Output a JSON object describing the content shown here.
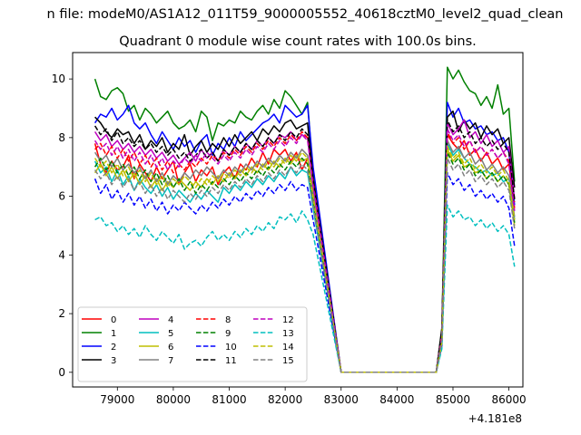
{
  "figure": {
    "suptitle": "n file: modeM0/AS1A12_011T59_9000005552_40618cztM0_level2_quad_clean",
    "title": "Quadrant 0 module wise count rates with 100.0s bins.",
    "offset_label": "+4.181e8"
  },
  "chart_data": {
    "type": "line",
    "title": "Quadrant 0 module wise count rates with 100.0s bins.",
    "xlabel": "",
    "ylabel": "",
    "x_offset": 418100000,
    "xlim": [
      78200,
      86250
    ],
    "ylim": [
      -0.5,
      10.9
    ],
    "xticks": [
      79000,
      80000,
      81000,
      82000,
      83000,
      84000,
      85000,
      86000
    ],
    "yticks": [
      0,
      2,
      4,
      6,
      8,
      10
    ],
    "grid": false,
    "legend": {
      "placement": "lower-left",
      "columns": 4
    },
    "x_start": 78600,
    "x_step": 100,
    "gap_start": 83000,
    "gap_end": 84700,
    "series": [
      {
        "name": "0",
        "color": "#ff0000",
        "dash": "solid",
        "before": [
          7.8,
          7.1,
          6.8,
          7.2,
          6.9,
          7.0,
          7.4,
          6.6,
          7.1,
          6.8,
          6.5,
          7.0,
          6.6,
          6.9,
          7.2,
          6.4,
          6.8,
          7.1,
          6.5,
          6.9,
          6.7,
          7.0,
          6.4,
          6.8,
          7.0,
          6.6,
          7.1,
          6.9,
          7.3,
          7.0,
          7.5,
          7.1,
          7.6,
          7.4,
          7.6,
          7.2,
          7.5,
          6.9,
          7.3,
          6.2
        ],
        "after": [
          1.0,
          8.1,
          7.8,
          7.6,
          7.9,
          7.4,
          7.6,
          7.2,
          7.5,
          7.1,
          7.3,
          6.9,
          7.1,
          5.6
        ]
      },
      {
        "name": "1",
        "color": "#008000",
        "dash": "solid",
        "before": [
          10.0,
          9.4,
          9.3,
          9.6,
          9.7,
          9.5,
          8.9,
          9.1,
          8.6,
          9.0,
          8.8,
          8.5,
          8.7,
          8.9,
          8.5,
          8.3,
          8.4,
          8.6,
          8.2,
          8.9,
          8.7,
          7.9,
          8.5,
          8.4,
          8.6,
          8.5,
          8.9,
          8.7,
          8.6,
          8.9,
          9.1,
          8.8,
          9.3,
          9.0,
          9.6,
          9.4,
          9.1,
          8.8,
          9.2,
          6.8
        ],
        "after": [
          1.4,
          10.4,
          10.0,
          10.3,
          9.9,
          9.6,
          9.5,
          9.1,
          9.4,
          9.0,
          9.8,
          8.8,
          9.0,
          6.5
        ]
      },
      {
        "name": "2",
        "color": "#0000ff",
        "dash": "solid",
        "before": [
          8.5,
          8.8,
          8.7,
          9.0,
          8.6,
          8.8,
          9.1,
          8.5,
          8.3,
          8.5,
          8.1,
          7.8,
          8.2,
          7.9,
          7.6,
          8.0,
          7.7,
          7.9,
          7.5,
          7.9,
          8.1,
          7.4,
          7.8,
          7.6,
          8.0,
          7.7,
          8.2,
          7.9,
          8.1,
          8.3,
          8.5,
          8.6,
          8.8,
          8.5,
          9.1,
          8.9,
          8.7,
          8.8,
          9.1,
          7.0
        ],
        "after": [
          1.2,
          9.2,
          8.7,
          9.0,
          8.5,
          8.6,
          8.3,
          8.4,
          8.1,
          8.2,
          7.9,
          8.0,
          7.5,
          5.7
        ]
      },
      {
        "name": "3",
        "color": "#000000",
        "dash": "solid",
        "before": [
          8.7,
          8.5,
          8.2,
          8.0,
          8.3,
          8.1,
          8.2,
          7.8,
          8.1,
          7.6,
          7.9,
          7.7,
          8.0,
          7.5,
          7.8,
          7.6,
          8.1,
          7.4,
          7.7,
          7.9,
          7.5,
          7.8,
          7.6,
          8.0,
          7.7,
          8.1,
          7.8,
          8.0,
          8.2,
          7.9,
          8.3,
          8.1,
          8.4,
          8.2,
          8.5,
          8.6,
          8.3,
          8.4,
          8.5,
          6.6
        ],
        "after": [
          1.5,
          8.7,
          8.9,
          8.2,
          8.6,
          8.3,
          8.5,
          8.0,
          8.4,
          8.1,
          8.3,
          7.8,
          8.0,
          6.3
        ]
      },
      {
        "name": "4",
        "color": "#bf00bf",
        "dash": "solid",
        "before": [
          8.2,
          7.9,
          8.1,
          7.7,
          7.9,
          7.6,
          7.8,
          7.5,
          7.7,
          7.4,
          7.6,
          7.3,
          7.5,
          7.2,
          7.4,
          7.1,
          7.3,
          7.5,
          7.2,
          7.6,
          7.3,
          7.5,
          7.2,
          7.6,
          7.4,
          7.7,
          7.5,
          7.8,
          7.6,
          7.9,
          7.7,
          8.0,
          7.8,
          8.1,
          8.0,
          8.2,
          7.9,
          8.1,
          8.0,
          6.4
        ],
        "after": [
          1.1,
          8.5,
          8.1,
          8.3,
          8.6,
          8.0,
          8.2,
          7.8,
          8.1,
          7.7,
          7.9,
          7.5,
          7.7,
          5.9
        ]
      },
      {
        "name": "5",
        "color": "#00bfbf",
        "dash": "solid",
        "before": [
          7.2,
          6.8,
          7.0,
          6.5,
          6.9,
          6.4,
          6.7,
          6.2,
          6.6,
          6.3,
          6.1,
          6.4,
          6.0,
          6.3,
          5.9,
          6.2,
          6.0,
          5.8,
          6.1,
          5.9,
          6.2,
          6.0,
          5.8,
          6.3,
          6.1,
          6.4,
          6.2,
          6.5,
          6.3,
          6.6,
          6.4,
          6.7,
          6.5,
          6.8,
          6.6,
          7.0,
          6.7,
          6.9,
          6.8,
          5.6
        ],
        "after": [
          1.3,
          7.8,
          7.4,
          7.6,
          7.3,
          7.1,
          7.0,
          6.8,
          6.9,
          6.7,
          6.8,
          6.5,
          6.6,
          5.2
        ]
      },
      {
        "name": "6",
        "color": "#bfbf00",
        "dash": "solid",
        "before": [
          6.8,
          7.1,
          6.7,
          7.0,
          6.6,
          6.9,
          6.5,
          6.8,
          6.4,
          6.7,
          6.3,
          6.6,
          6.2,
          6.5,
          6.3,
          6.6,
          6.4,
          6.2,
          6.5,
          6.3,
          6.6,
          6.4,
          6.7,
          6.5,
          6.8,
          6.6,
          6.9,
          6.7,
          7.0,
          6.8,
          7.1,
          6.9,
          7.2,
          7.0,
          7.3,
          7.1,
          7.4,
          7.2,
          7.3,
          5.9
        ],
        "after": [
          1.0,
          7.6,
          7.2,
          7.4,
          7.0,
          7.1,
          6.8,
          6.9,
          6.6,
          6.8,
          6.5,
          6.7,
          6.4,
          5.0
        ]
      },
      {
        "name": "7",
        "color": "#808080",
        "dash": "solid",
        "before": [
          7.5,
          7.2,
          7.4,
          7.0,
          7.3,
          6.9,
          7.1,
          6.8,
          7.0,
          6.6,
          6.9,
          6.5,
          6.8,
          6.4,
          6.7,
          6.5,
          6.8,
          6.6,
          6.9,
          6.7,
          7.0,
          6.8,
          6.6,
          6.9,
          6.7,
          7.0,
          6.8,
          7.1,
          6.9,
          7.2,
          7.0,
          7.3,
          7.1,
          7.4,
          7.2,
          7.5,
          7.3,
          7.6,
          7.4,
          6.1
        ],
        "after": [
          1.2,
          7.9,
          7.5,
          7.7,
          7.3,
          7.5,
          7.1,
          7.3,
          6.9,
          7.1,
          6.8,
          7.0,
          6.7,
          5.3
        ]
      },
      {
        "name": "8",
        "color": "#ff0000",
        "dash": "dashed",
        "before": [
          7.6,
          7.8,
          7.4,
          7.7,
          7.3,
          7.6,
          7.2,
          7.5,
          7.1,
          7.4,
          7.0,
          7.3,
          6.9,
          7.2,
          6.8,
          7.1,
          6.9,
          7.2,
          7.0,
          7.3,
          7.1,
          7.4,
          7.2,
          7.5,
          7.3,
          7.6,
          7.4,
          7.7,
          7.5,
          7.8,
          7.6,
          7.9,
          7.7,
          8.0,
          7.8,
          8.1,
          7.9,
          8.2,
          8.0,
          6.5
        ],
        "after": [
          1.3,
          8.2,
          7.8,
          8.0,
          7.6,
          7.9,
          7.5,
          7.7,
          7.4,
          7.6,
          7.3,
          7.5,
          7.2,
          5.8
        ]
      },
      {
        "name": "9",
        "color": "#008000",
        "dash": "dashed",
        "before": [
          7.0,
          7.3,
          6.9,
          7.2,
          6.8,
          7.1,
          6.7,
          7.0,
          6.6,
          6.9,
          6.5,
          6.8,
          6.4,
          6.7,
          6.3,
          6.6,
          6.2,
          6.5,
          6.1,
          6.4,
          6.2,
          6.5,
          6.3,
          6.6,
          6.4,
          6.7,
          6.5,
          6.8,
          6.6,
          6.9,
          6.7,
          7.0,
          6.8,
          7.1,
          6.9,
          7.2,
          7.0,
          7.3,
          7.1,
          5.8
        ],
        "after": [
          1.1,
          7.5,
          7.1,
          7.3,
          6.9,
          7.1,
          6.7,
          6.9,
          6.6,
          6.8,
          6.5,
          6.7,
          6.4,
          5.1
        ]
      },
      {
        "name": "10",
        "color": "#0000ff",
        "dash": "dashed",
        "before": [
          6.6,
          6.1,
          6.4,
          5.9,
          6.2,
          5.8,
          6.1,
          5.7,
          6.0,
          5.6,
          5.9,
          5.5,
          5.8,
          5.4,
          5.7,
          5.5,
          5.8,
          5.6,
          5.4,
          5.7,
          5.5,
          5.8,
          5.6,
          5.9,
          5.7,
          6.0,
          5.8,
          6.1,
          5.9,
          6.2,
          6.0,
          6.3,
          6.1,
          6.4,
          6.2,
          6.5,
          6.2,
          6.4,
          6.3,
          5.2
        ],
        "after": [
          0.9,
          6.8,
          6.4,
          6.6,
          6.2,
          6.4,
          6.0,
          6.2,
          5.9,
          6.1,
          5.8,
          6.0,
          5.6,
          4.3
        ]
      },
      {
        "name": "11",
        "color": "#000000",
        "dash": "dashed",
        "before": [
          8.4,
          8.1,
          8.3,
          7.9,
          8.2,
          7.8,
          8.0,
          7.7,
          7.9,
          7.6,
          7.8,
          7.5,
          7.7,
          7.4,
          7.6,
          7.3,
          7.5,
          7.2,
          7.4,
          7.6,
          7.3,
          7.5,
          7.2,
          7.6,
          7.4,
          7.7,
          7.5,
          7.8,
          7.6,
          7.9,
          7.7,
          8.0,
          7.8,
          8.1,
          7.9,
          8.2,
          8.0,
          8.3,
          8.1,
          6.6
        ],
        "after": [
          1.4,
          8.6,
          8.2,
          8.4,
          8.0,
          8.2,
          7.8,
          8.0,
          7.7,
          7.9,
          7.6,
          7.8,
          7.5,
          5.9
        ]
      },
      {
        "name": "12",
        "color": "#bf00bf",
        "dash": "dashed",
        "before": [
          7.9,
          7.6,
          7.8,
          7.4,
          7.7,
          7.3,
          7.6,
          7.2,
          7.5,
          7.1,
          7.4,
          7.0,
          7.3,
          6.9,
          7.2,
          7.0,
          7.3,
          7.1,
          7.4,
          7.2,
          7.5,
          7.3,
          7.1,
          7.4,
          7.2,
          7.5,
          7.3,
          7.6,
          7.4,
          7.7,
          7.5,
          7.8,
          7.6,
          7.9,
          7.7,
          8.0,
          7.8,
          8.1,
          7.9,
          6.4
        ],
        "after": [
          1.2,
          8.3,
          7.9,
          8.1,
          7.7,
          7.9,
          7.5,
          7.7,
          7.4,
          7.6,
          7.3,
          7.5,
          7.1,
          5.5
        ]
      },
      {
        "name": "13",
        "color": "#00bfbf",
        "dash": "dashed",
        "before": [
          5.2,
          5.3,
          5.0,
          5.1,
          4.8,
          5.0,
          4.7,
          4.9,
          4.6,
          5.0,
          4.7,
          4.5,
          4.8,
          4.6,
          4.4,
          4.7,
          4.2,
          4.4,
          4.5,
          4.3,
          4.6,
          4.8,
          4.5,
          4.7,
          4.5,
          4.8,
          4.6,
          4.9,
          4.7,
          5.0,
          4.8,
          5.1,
          4.9,
          5.3,
          5.2,
          5.4,
          5.1,
          5.5,
          5.2,
          4.7
        ],
        "after": [
          0.8,
          5.7,
          5.3,
          5.5,
          5.2,
          5.3,
          5.0,
          5.2,
          4.9,
          5.1,
          4.8,
          5.0,
          4.7,
          3.6
        ]
      },
      {
        "name": "14",
        "color": "#bfbf00",
        "dash": "dashed",
        "before": [
          7.3,
          7.0,
          7.2,
          6.8,
          7.1,
          6.7,
          7.0,
          6.6,
          6.9,
          6.5,
          6.8,
          6.4,
          6.7,
          6.3,
          6.6,
          6.4,
          6.7,
          6.5,
          6.3,
          6.6,
          6.4,
          6.7,
          6.5,
          6.8,
          6.6,
          6.9,
          6.7,
          7.0,
          6.8,
          7.1,
          6.9,
          7.2,
          7.0,
          7.3,
          7.1,
          7.4,
          7.2,
          7.5,
          7.3,
          6.0
        ],
        "after": [
          1.0,
          7.7,
          7.3,
          7.5,
          7.1,
          7.3,
          6.9,
          7.1,
          6.8,
          7.0,
          6.7,
          6.9,
          6.5,
          5.2
        ]
      },
      {
        "name": "15",
        "color": "#808080",
        "dash": "dashed",
        "before": [
          6.9,
          6.6,
          6.8,
          6.4,
          6.7,
          6.3,
          6.6,
          6.2,
          6.5,
          6.1,
          6.4,
          6.0,
          6.3,
          5.9,
          6.2,
          6.0,
          5.8,
          6.1,
          5.9,
          6.2,
          6.0,
          6.3,
          6.1,
          6.4,
          6.2,
          6.5,
          6.3,
          6.6,
          6.4,
          6.7,
          6.5,
          6.8,
          6.6,
          6.9,
          6.7,
          7.0,
          6.8,
          7.1,
          6.9,
          5.7
        ],
        "after": [
          1.1,
          7.3,
          6.9,
          7.1,
          6.7,
          6.9,
          6.5,
          6.7,
          6.4,
          6.6,
          6.3,
          6.5,
          6.2,
          4.9
        ]
      }
    ]
  }
}
